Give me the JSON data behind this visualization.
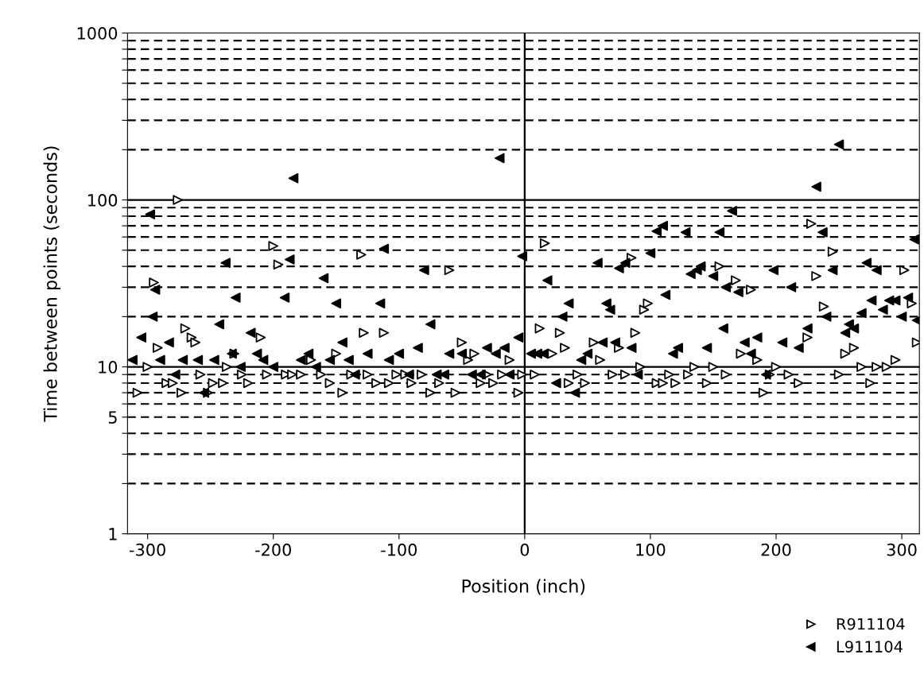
{
  "chart_data": {
    "type": "scatter",
    "xlabel": "Position (inch)",
    "ylabel": "Time between points (seconds)",
    "log": "y",
    "marker": "triangle",
    "grid": "y",
    "legend": "bottom right",
    "xlim": [
      -316,
      314
    ],
    "xticks": [
      -300,
      -200,
      -100,
      0,
      100,
      200,
      300
    ],
    "ylim": [
      1,
      1000
    ],
    "yticks": [
      1,
      {
        "value": 2,
        "label": null
      },
      {
        "value": 3,
        "label": null
      },
      {
        "value": 4,
        "label": null
      },
      5,
      {
        "value": 6,
        "label": null
      },
      {
        "value": 7,
        "label": null
      },
      {
        "value": 8,
        "label": null
      },
      {
        "value": 9,
        "label": null
      },
      10,
      {
        "value": 20,
        "label": null
      },
      {
        "value": 30,
        "label": null
      },
      {
        "value": 40,
        "label": null
      },
      {
        "value": 50,
        "label": null
      },
      {
        "value": 60,
        "label": null
      },
      {
        "value": 70,
        "label": null
      },
      {
        "value": 80,
        "label": null
      },
      {
        "value": 90,
        "label": null
      },
      100,
      {
        "value": 200,
        "label": null
      },
      {
        "value": 300,
        "label": null
      },
      {
        "value": 400,
        "label": null
      },
      {
        "value": 500,
        "label": null
      },
      {
        "value": 600,
        "label": null
      },
      {
        "value": 700,
        "label": null
      },
      {
        "value": 800,
        "label": null
      },
      {
        "value": 900,
        "label": null
      },
      1000
    ],
    "ref_lines": [
      {
        "axis": "x",
        "value": 0,
        "label": null,
        "line_style": "solid"
      }
    ],
    "series": [
      {
        "name": "R911104",
        "color": "#000000",
        "x": [
          -308,
          -300,
          -295,
          -292,
          -285,
          -280,
          -276,
          -273,
          -270,
          -265,
          -262,
          -258,
          -252,
          -248,
          -240,
          -237,
          -231,
          -225,
          -220,
          -210,
          -205,
          -200,
          -196,
          -190,
          -185,
          -178,
          -170,
          -162,
          -155,
          -150,
          -145,
          -138,
          -130,
          -128,
          -125,
          -118,
          -112,
          -108,
          -102,
          -95,
          -90,
          -82,
          -75,
          -68,
          -60,
          -55,
          -50,
          -45,
          -40,
          -35,
          -30,
          -25,
          -18,
          -12,
          -5,
          -2,
          8,
          12,
          16,
          22,
          28,
          32,
          35,
          42,
          48,
          55,
          60,
          70,
          75,
          80,
          85,
          88,
          92,
          95,
          98,
          105,
          110,
          115,
          120,
          130,
          135,
          145,
          150,
          155,
          160,
          168,
          172,
          180,
          185,
          190,
          195,
          200,
          210,
          218,
          225,
          228,
          232,
          238,
          245,
          250,
          255,
          262,
          268,
          275,
          280,
          288,
          295,
          302,
          308,
          312
        ],
        "values": [
          7,
          10,
          32,
          13,
          8,
          8,
          100,
          7,
          17,
          15,
          14,
          9,
          7,
          8,
          8,
          10,
          12,
          9,
          8,
          15,
          9,
          53,
          41,
          9,
          9,
          9,
          11,
          9,
          8,
          12,
          7,
          9,
          47,
          16,
          9,
          8,
          16,
          8,
          9,
          9,
          8,
          9,
          7,
          8,
          38,
          7,
          14,
          11,
          12,
          8,
          9,
          8,
          9,
          11,
          7,
          9,
          9,
          17,
          55,
          12,
          16,
          13,
          8,
          9,
          8,
          14,
          11,
          9,
          13,
          9,
          45,
          16,
          10,
          22,
          24,
          8,
          8,
          9,
          8,
          9,
          10,
          8,
          10,
          40,
          9,
          33,
          12,
          29,
          11,
          7,
          9,
          10,
          9,
          8,
          15,
          72,
          35,
          23,
          49,
          9,
          12,
          13,
          10,
          8,
          10,
          10,
          11,
          38,
          24,
          14
        ]
      },
      {
        "name": "L911104",
        "color": "#000000",
        "x": [
          -312,
          -305,
          -298,
          -296,
          -294,
          -290,
          -283,
          -278,
          -272,
          -260,
          -255,
          -247,
          -243,
          -238,
          -233,
          -230,
          -226,
          -218,
          -213,
          -208,
          -200,
          -191,
          -187,
          -184,
          -178,
          -172,
          -166,
          -160,
          -155,
          -150,
          -145,
          -140,
          -135,
          -125,
          -115,
          -112,
          -108,
          -100,
          -92,
          -85,
          -80,
          -75,
          -70,
          -64,
          -60,
          -50,
          -42,
          -35,
          -30,
          -23,
          -20,
          -16,
          -12,
          -5,
          -2,
          5,
          10,
          15,
          18,
          25,
          30,
          35,
          40,
          45,
          50,
          58,
          62,
          65,
          68,
          72,
          75,
          80,
          85,
          90,
          100,
          105,
          110,
          112,
          118,
          122,
          128,
          132,
          137,
          140,
          145,
          150,
          155,
          158,
          160,
          165,
          170,
          175,
          180,
          185,
          192,
          198,
          205,
          212,
          218,
          225,
          232,
          237,
          240,
          245,
          250,
          255,
          258,
          262,
          268,
          272,
          276,
          280,
          285,
          290,
          295,
          300,
          305,
          310,
          312
        ],
        "values": [
          11,
          15,
          82,
          20,
          29,
          11,
          14,
          9,
          11,
          11,
          7,
          11,
          18,
          42,
          12,
          26,
          10,
          16,
          12,
          11,
          10,
          26,
          44,
          135,
          11,
          12,
          10,
          34,
          11,
          24,
          14,
          11,
          9,
          12,
          24,
          51,
          11,
          12,
          9,
          13,
          38,
          18,
          9,
          9,
          12,
          12,
          9,
          9,
          13,
          12,
          178,
          13,
          9,
          15,
          46,
          12,
          12,
          12,
          33,
          8,
          20,
          24,
          7,
          11,
          12,
          42,
          14,
          24,
          22,
          14,
          39,
          42,
          13,
          9,
          48,
          65,
          70,
          27,
          12,
          13,
          64,
          36,
          38,
          40,
          13,
          35,
          64,
          17,
          30,
          86,
          28,
          14,
          12,
          15,
          9,
          38,
          14,
          30,
          13,
          17,
          120,
          64,
          20,
          38,
          215,
          16,
          18,
          17,
          21,
          42,
          25,
          38,
          22,
          25,
          25,
          20,
          26,
          58,
          19
        ]
      }
    ]
  }
}
